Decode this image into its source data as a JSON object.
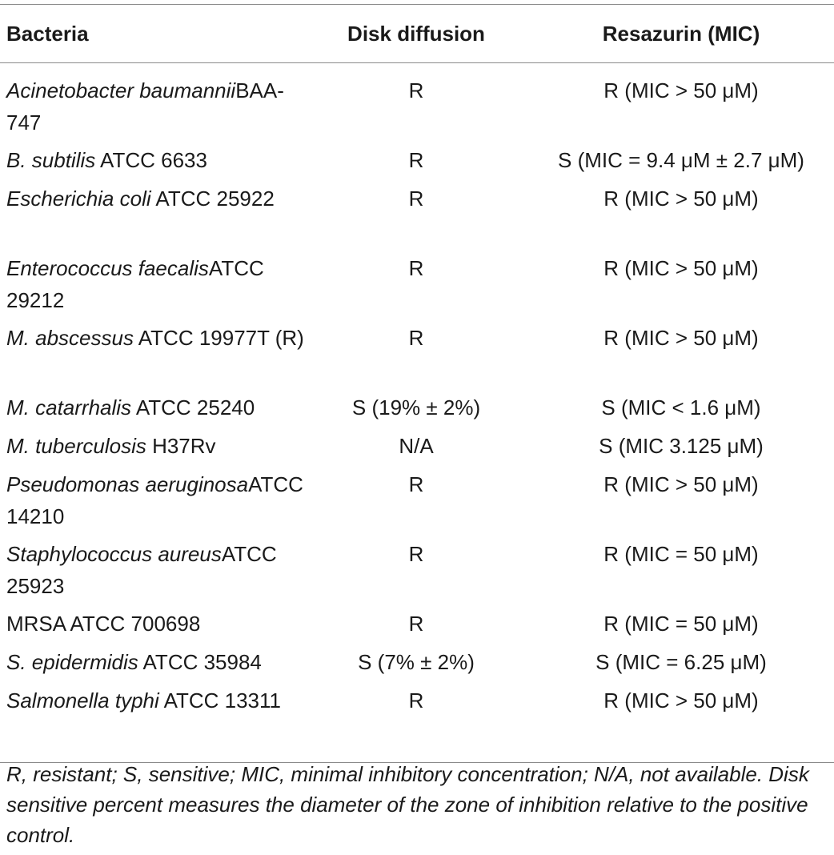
{
  "table": {
    "headers": [
      "Bacteria",
      "Disk diffusion",
      "Resazurin (MIC)"
    ],
    "rows": [
      {
        "name_italic": "Acinetobacter baumannii",
        "name_rest": "BAA-747",
        "disk": "R",
        "resazurin": "R (MIC > 50 μM)",
        "lines": 2
      },
      {
        "name_italic": "B. subtilis",
        "name_rest": " ATCC 6633",
        "disk": "R",
        "resazurin": "S (MIC = 9.4 μM ± 2.7 μM)",
        "lines": 1
      },
      {
        "name_italic": "Escherichia coli",
        "name_rest": " ATCC 25922",
        "disk": "R",
        "resazurin": "R (MIC > 50 μM)",
        "lines": 2
      },
      {
        "name_italic": "Enterococcus faecalis",
        "name_rest": "ATCC 29212",
        "disk": "R",
        "resazurin": "R (MIC > 50 μM)",
        "lines": 2
      },
      {
        "name_italic": "M. abscessus",
        "name_rest": " ATCC 19977T (R)",
        "disk": "R",
        "resazurin": "R (MIC > 50 μM)",
        "lines": 2
      },
      {
        "name_italic": "M. catarrhalis",
        "name_rest": " ATCC 25240",
        "disk": "S (19% ± 2%)",
        "resazurin": "S (MIC < 1.6 μM)",
        "lines": 1
      },
      {
        "name_italic": "M. tuberculosis",
        "name_rest": " H37Rv",
        "disk": "N/A",
        "resazurin": "S (MIC 3.125 μM)",
        "lines": 1
      },
      {
        "name_italic": "Pseudomonas aeruginosa",
        "name_rest": "ATCC 14210",
        "disk": "R",
        "resazurin": "R (MIC > 50 μM)",
        "lines": 2
      },
      {
        "name_italic": "Staphylococcus aureus",
        "name_rest": "ATCC 25923",
        "disk": "R",
        "resazurin": "R (MIC = 50 μM)",
        "lines": 2
      },
      {
        "name_italic": "",
        "name_rest": "MRSA ATCC 700698",
        "disk": "R",
        "resazurin": "R (MIC = 50 μM)",
        "lines": 1
      },
      {
        "name_italic": "S. epidermidis",
        "name_rest": " ATCC 35984",
        "disk": "S (7% ± 2%)",
        "resazurin": "S (MIC = 6.25 μM)",
        "lines": 1
      },
      {
        "name_italic": "Salmonella typhi",
        "name_rest": " ATCC 13311",
        "disk": "R",
        "resazurin": "R (MIC > 50 μM)",
        "lines": 2
      }
    ]
  },
  "footnote": "R, resistant; S, sensitive; MIC, minimal inhibitory concentration; N/A, not available. Disk sensitive percent measures the diameter of the zone of inhibition relative to the positive control."
}
